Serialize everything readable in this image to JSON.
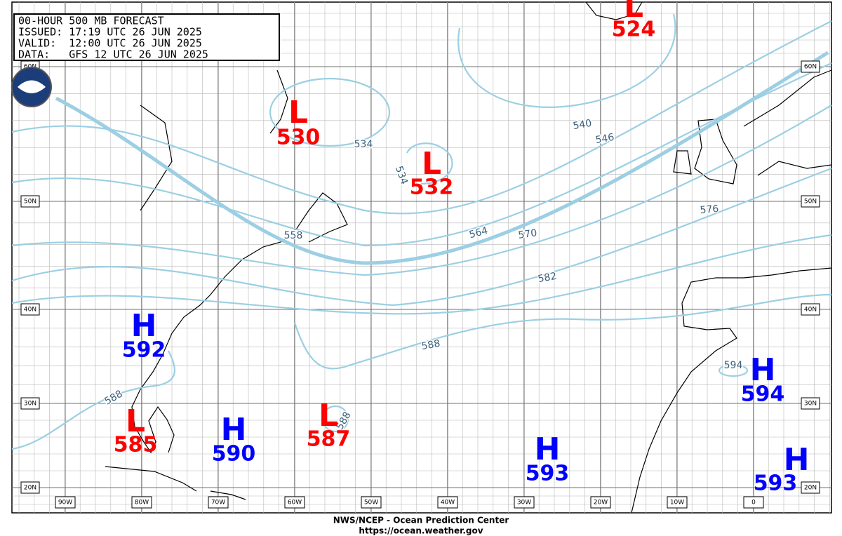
{
  "header": {
    "lines": [
      "00-HOUR 500 MB FORECAST",
      "ISSUED: 17:19 UTC 26 JUN 2025",
      "VALID:  12:00 UTC 26 JUN 2025",
      "DATA:   GFS 12 UTC 26 JUN 2025"
    ]
  },
  "centers": [
    {
      "type": "L",
      "value": 524
    },
    {
      "type": "L",
      "value": 530
    },
    {
      "type": "L",
      "value": 532
    },
    {
      "type": "H",
      "value": 592
    },
    {
      "type": "L",
      "value": 585
    },
    {
      "type": "H",
      "value": 590
    },
    {
      "type": "L",
      "value": 587
    },
    {
      "type": "H",
      "value": 593
    },
    {
      "type": "H",
      "value": 594
    },
    {
      "type": "H",
      "value": 593
    }
  ],
  "contour_labels": [
    534,
    534,
    540,
    546,
    558,
    564,
    570,
    576,
    582,
    588,
    588,
    588,
    594
  ],
  "latitudes": [
    "60N",
    "50N",
    "40N",
    "30N",
    "20N"
  ],
  "longitudes": [
    "90W",
    "80W",
    "70W",
    "60W",
    "50W",
    "40W",
    "30W",
    "20W",
    "10W",
    "0"
  ],
  "footer": {
    "line1": "NWS/NCEP - Ocean Prediction Center",
    "line2": "https://ocean.weather.gov"
  }
}
